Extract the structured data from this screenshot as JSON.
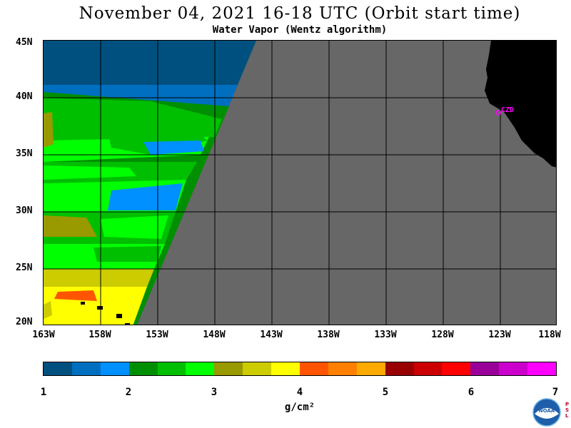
{
  "title": "November 04, 2021  16-18 UTC  (Orbit start time)",
  "subtitle": "Water Vapor (Wentz algorithm)",
  "map": {
    "lat_labels": [
      "45N",
      "40N",
      "35N",
      "30N",
      "25N",
      "20N"
    ],
    "lon_labels": [
      "163W",
      "158W",
      "153W",
      "148W",
      "143W",
      "138W",
      "133W",
      "128W",
      "123W",
      "118W"
    ],
    "station_label": "CZD",
    "no_data_color": "#676767",
    "land_color": "#000000",
    "station_color": "#ff00ff"
  },
  "colorbar": {
    "colors": [
      "#00507f",
      "#006fbf",
      "#0090ff",
      "#008f00",
      "#00bf00",
      "#00ff00",
      "#999900",
      "#cccc00",
      "#ffff00",
      "#ff5500",
      "#ff8000",
      "#ffaa00",
      "#990000",
      "#cc0000",
      "#ff0000",
      "#990099",
      "#cc00cc",
      "#ff00ff"
    ],
    "ticks": [
      "1",
      "2",
      "3",
      "4",
      "5",
      "6",
      "7"
    ],
    "unit": "g/cm²"
  },
  "logo": {
    "text": "NOAA",
    "side_text": [
      "P",
      "S",
      "L"
    ]
  }
}
